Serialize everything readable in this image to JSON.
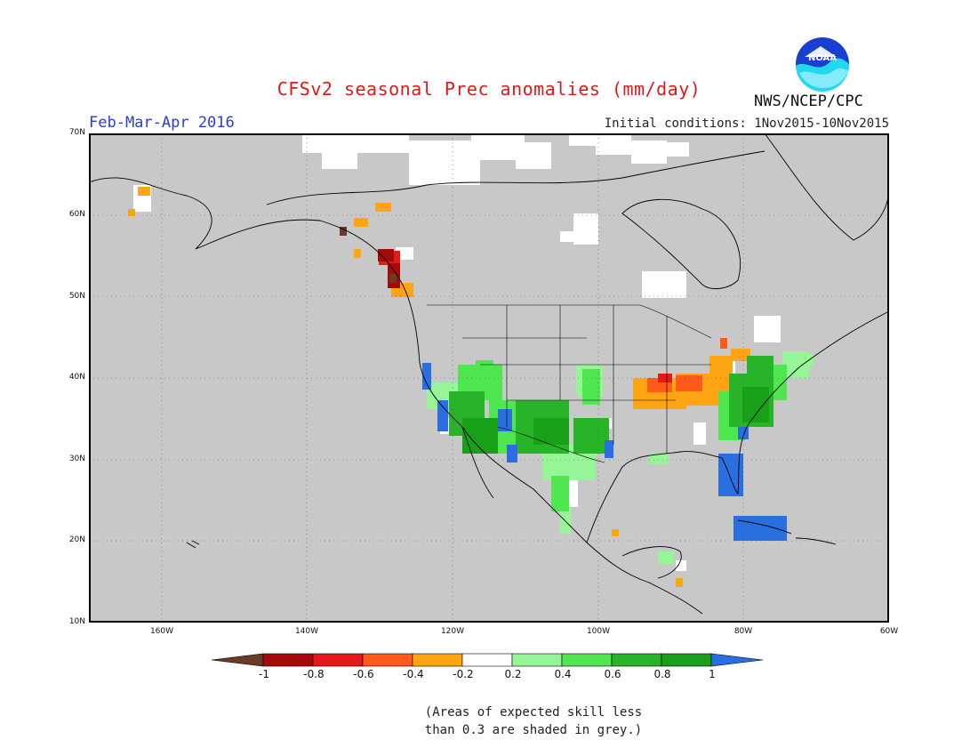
{
  "title": "CFSv2 seasonal Prec anomalies (mm/day)",
  "period": "Feb-Mar-Apr 2016",
  "initial_conditions": "Initial conditions: 1Nov2015-10Nov2015",
  "agency": "NWS/NCEP/CPC",
  "logo_text": "NOAA",
  "map": {
    "lon_range": [
      -170,
      -60
    ],
    "lat_range": [
      10,
      70
    ],
    "lat_labels": [
      "70N",
      "60N",
      "50N",
      "40N",
      "30N",
      "20N",
      "10N"
    ],
    "lon_labels": [
      "160W",
      "140W",
      "120W",
      "100W",
      "80W",
      "60W"
    ],
    "grey_color": "#c8c8c8"
  },
  "colorbar": {
    "tick_labels": [
      "-1",
      "-0.8",
      "-0.6",
      "-0.4",
      "-0.2",
      "0.2",
      "0.4",
      "0.6",
      "0.8",
      "1"
    ],
    "colors": [
      "#6b3a28",
      "#a50a0a",
      "#e41a1a",
      "#ff5a1a",
      "#ffa514",
      "#ffffff",
      "#96f596",
      "#50e650",
      "#28b428",
      "#18a018",
      "#2a6fe0"
    ]
  },
  "note": {
    "line1": "(Areas of expected skill less",
    "line2": "than 0.3 are shaded in grey.)"
  }
}
